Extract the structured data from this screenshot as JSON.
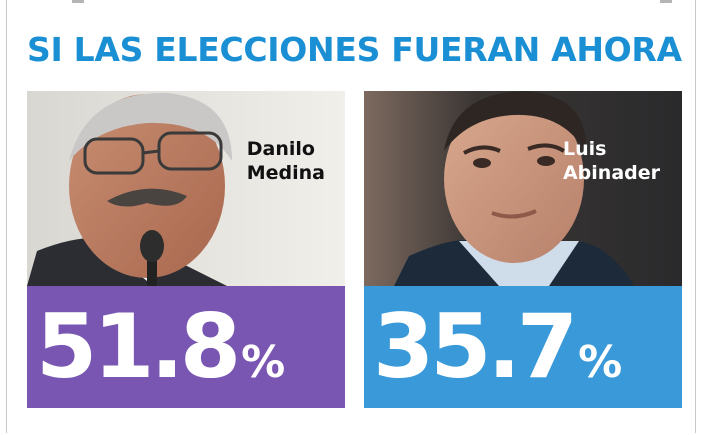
{
  "headline": "SI LAS ELECCIONES FUERAN AHORA",
  "candidates": [
    {
      "first": "Danilo",
      "last": "Medina",
      "value": "51.8",
      "symbol": "%",
      "color": "#7a56b3"
    },
    {
      "first": "Luis",
      "last": "Abinader",
      "value": "35.7",
      "symbol": "%",
      "color": "#3a9ad9"
    }
  ],
  "accent_color": "#1b8fd4"
}
